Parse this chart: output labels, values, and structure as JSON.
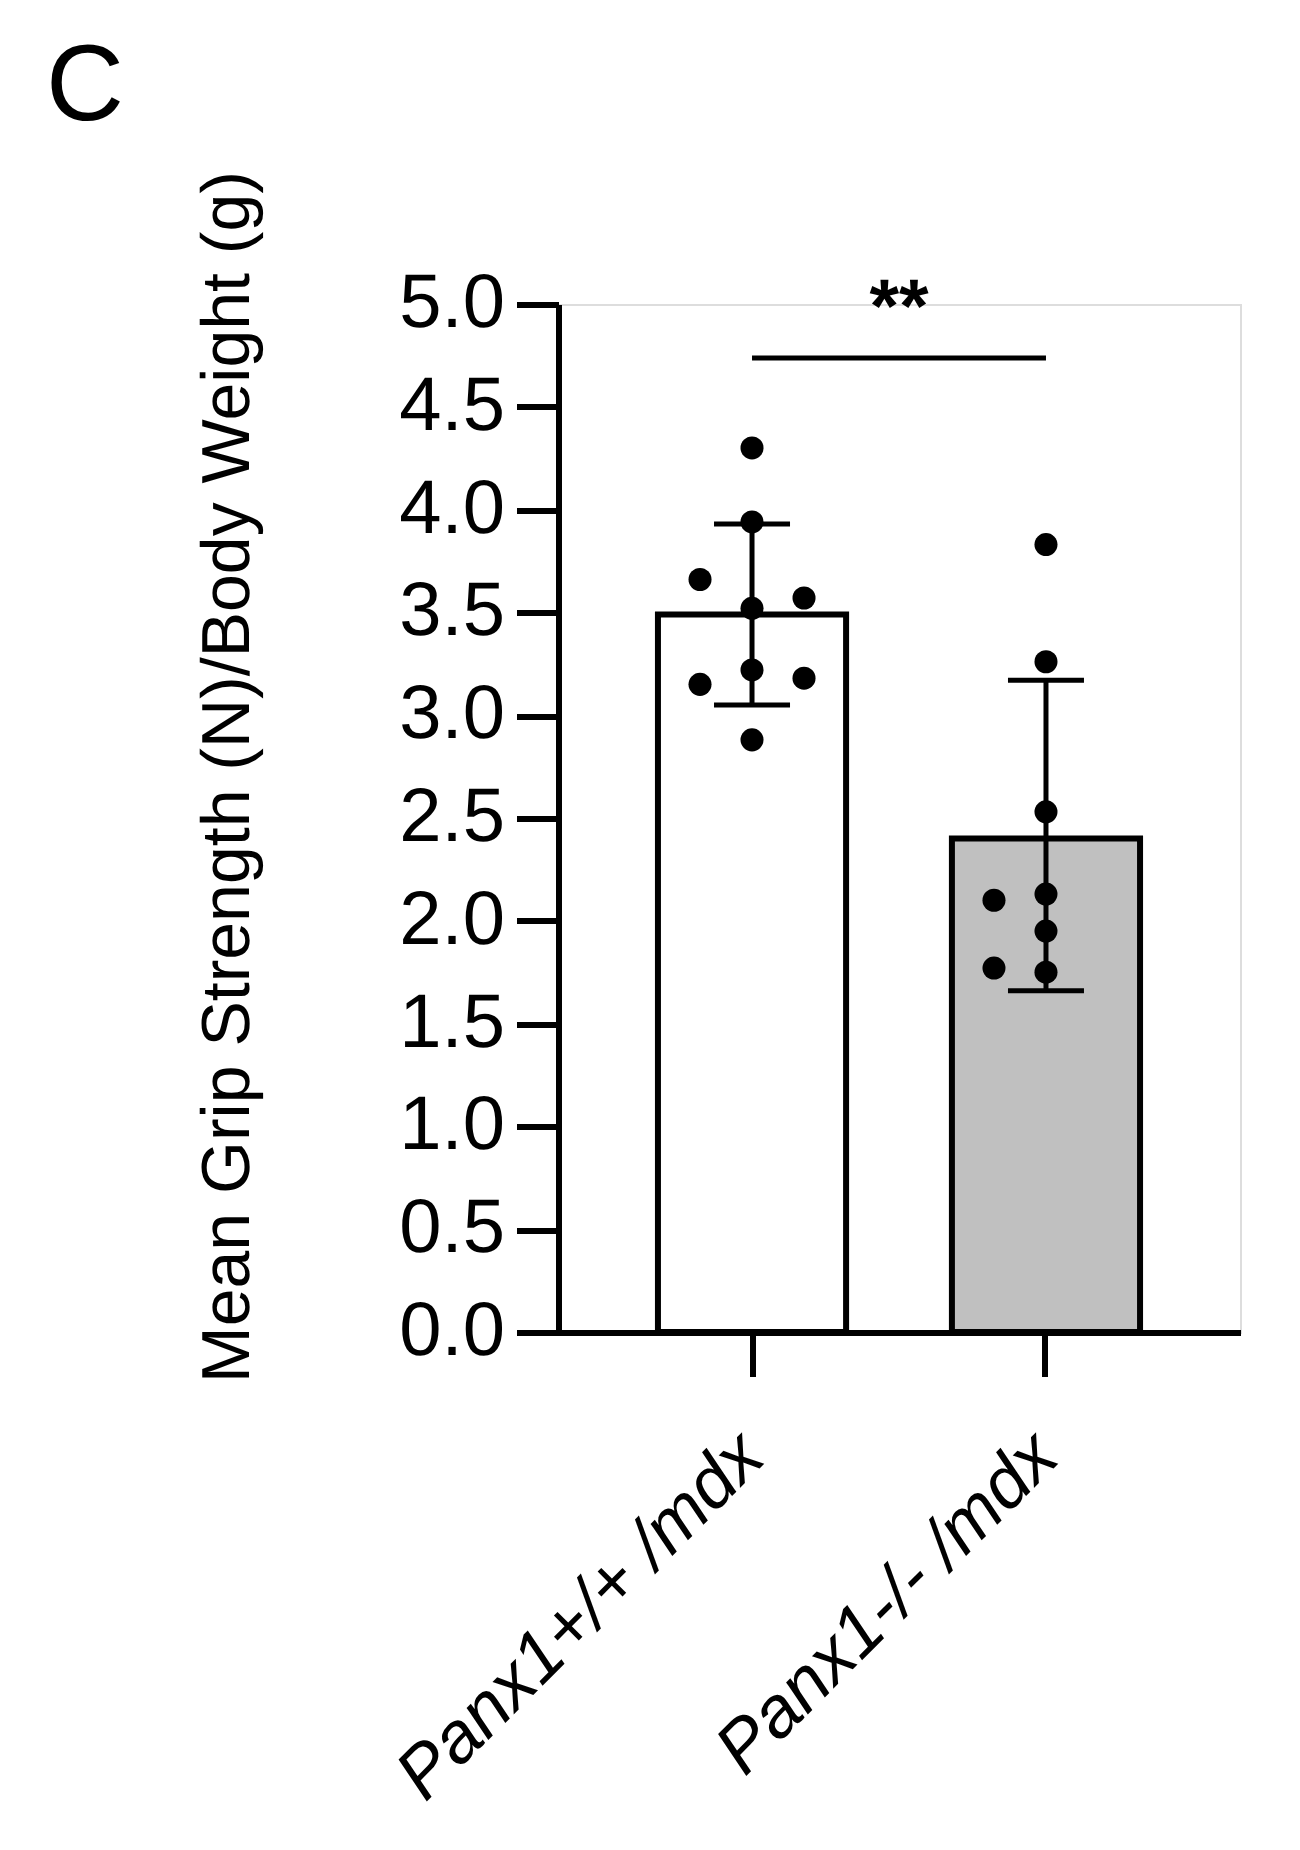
{
  "chart_data": {
    "type": "bar",
    "title": "C",
    "ylabel": "Mean Grip Strength (N)/Body Weight (g)",
    "categories": [
      "Panx1+/+ /mdx",
      "Panx1-/- /mdx"
    ],
    "series": [
      {
        "values": [
          3.49,
          2.4
        ],
        "colors": [
          "#ffffff",
          "#c0c0c0"
        ],
        "errors": [
          0.44,
          [
            1.66,
            3.17
          ]
        ]
      },
      {
        "type": "scatter",
        "color": "#000000",
        "marker": "circle",
        "x": [
          "Panx1+/+ /mdx",
          "Panx1+/+ /mdx",
          "Panx1+/+ /mdx",
          "Panx1+/+ /mdx",
          "Panx1+/+ /mdx",
          "Panx1+/+ /mdx",
          "Panx1+/+ /mdx",
          "Panx1+/+ /mdx",
          "Panx1+/+ /mdx",
          "Panx1-/- /mdx",
          "Panx1-/- /mdx",
          "Panx1-/- /mdx",
          "Panx1-/- /mdx",
          "Panx1-/- /mdx",
          "Panx1-/- /mdx",
          "Panx1-/- /mdx",
          "Panx1-/- /mdx"
        ],
        "values": [
          4.3,
          3.94,
          3.52,
          3.66,
          3.57,
          3.22,
          3.15,
          3.18,
          2.88,
          3.83,
          3.26,
          2.53,
          2.13,
          2.1,
          1.95,
          1.75,
          1.77
        ]
      }
    ],
    "ylim": [
      0,
      5
    ],
    "yticks": [
      {
        "value": 0,
        "label": "0.0"
      },
      0.5,
      {
        "value": 1,
        "label": "1.0"
      },
      1.5,
      {
        "value": 2,
        "label": "2.0"
      },
      2.5,
      {
        "value": 3,
        "label": "3.0"
      },
      3.5,
      {
        "value": 4,
        "label": "4.0"
      },
      4.5,
      {
        "value": 5,
        "label": "5.0"
      }
    ],
    "annotations": [
      "**"
    ]
  }
}
